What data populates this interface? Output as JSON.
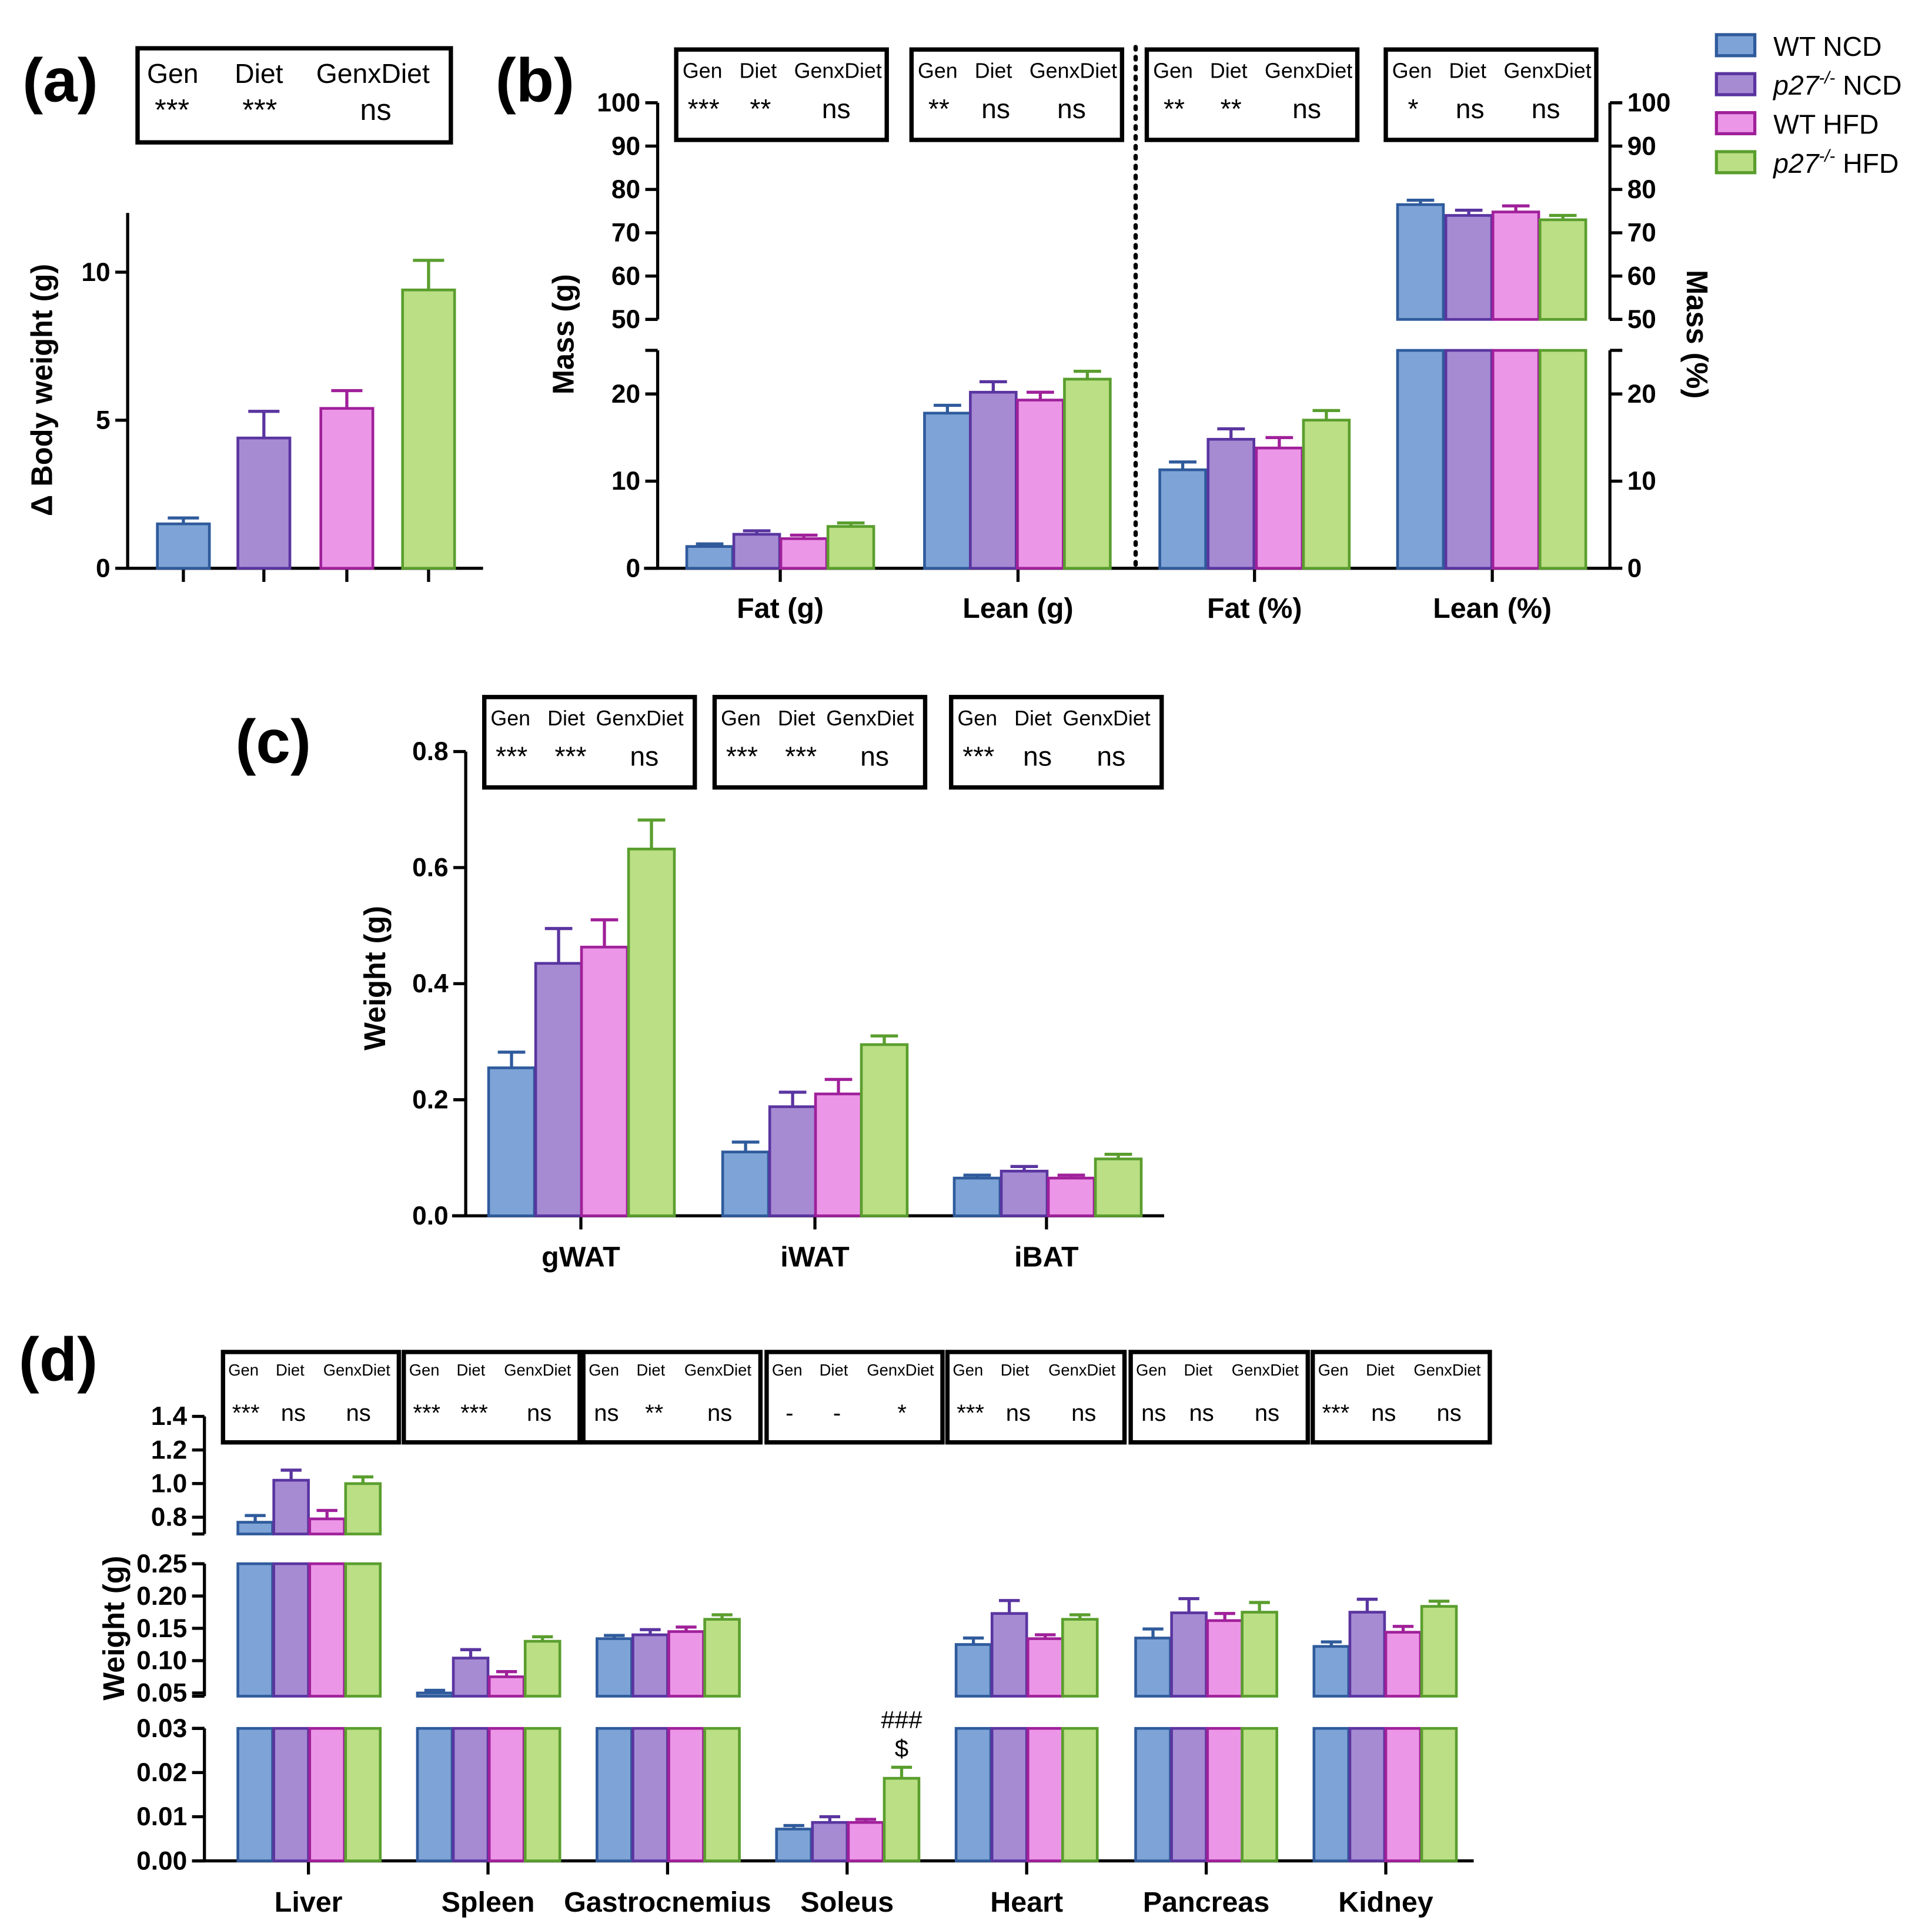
{
  "legend": [
    {
      "key": "wt_ncd",
      "prefix": "WT NCD",
      "sup": "",
      "suffix": "",
      "fill": "#7ea3d6",
      "stroke": "#2f5b9c"
    },
    {
      "key": "p27_ncd",
      "prefix": "p27",
      "sup": "-/-",
      "suffix": " NCD",
      "fill": "#a68bd3",
      "stroke": "#5a35a0"
    },
    {
      "key": "wt_hfd",
      "prefix": "WT HFD",
      "sup": "",
      "suffix": "",
      "fill": "#ec96e8",
      "stroke": "#a0209a"
    },
    {
      "key": "p27_hfd",
      "prefix": "p27",
      "sup": "-/-",
      "suffix": " HFD",
      "fill": "#bbdf84",
      "stroke": "#5a9e2e"
    }
  ],
  "stat_headers": [
    "Gen",
    "Diet",
    "GenxDiet"
  ],
  "chart_data": [
    {
      "id": "a",
      "panel_label": "(a)",
      "type": "bar",
      "ylabel": "Δ Body weight (g)",
      "y_segments": [
        {
          "range": [
            0,
            12
          ],
          "ticks": [
            "0",
            "5",
            "10"
          ]
        }
      ],
      "categories": [
        ""
      ],
      "series_values": [
        [
          1.5
        ],
        [
          4.4
        ],
        [
          5.4
        ],
        [
          9.4
        ]
      ],
      "series_errors": [
        [
          0.2
        ],
        [
          0.9
        ],
        [
          0.6
        ],
        [
          1.0
        ]
      ],
      "stats": [
        [
          "***",
          "***",
          "ns"
        ]
      ]
    },
    {
      "id": "b",
      "panel_label": "(b)",
      "type": "bar",
      "ylabel": "Mass (g)",
      "ylabel_right": "Mass (%)",
      "y_segments": [
        {
          "range": [
            0,
            25
          ],
          "ticks": [
            "0",
            "10",
            "20"
          ]
        },
        {
          "range": [
            50,
            100
          ],
          "ticks": [
            "50",
            "60",
            "70",
            "80",
            "90",
            "100"
          ]
        }
      ],
      "categories": [
        "Fat (g)",
        "Lean (g)",
        "Fat (%)",
        "Lean (%)"
      ],
      "series_values": [
        [
          2.5,
          17.8,
          11.3,
          76.5
        ],
        [
          3.9,
          20.2,
          14.8,
          74.0
        ],
        [
          3.4,
          19.3,
          13.8,
          74.8
        ],
        [
          4.8,
          21.7,
          17.0,
          73.0
        ]
      ],
      "series_errors": [
        [
          0.3,
          0.9,
          0.9,
          1.0
        ],
        [
          0.4,
          1.2,
          1.2,
          1.2
        ],
        [
          0.4,
          0.9,
          1.2,
          1.4
        ],
        [
          0.4,
          0.9,
          1.1,
          1.0
        ]
      ],
      "stats": [
        [
          "***",
          "**",
          "ns"
        ],
        [
          "**",
          "ns",
          "ns"
        ],
        [
          "**",
          "**",
          "ns"
        ],
        [
          "*",
          "ns",
          "ns"
        ]
      ]
    },
    {
      "id": "c",
      "panel_label": "(c)",
      "type": "bar",
      "ylabel": "Weight (g)",
      "y_segments": [
        {
          "range": [
            0,
            0.8
          ],
          "ticks": [
            "0.0",
            "0.2",
            "0.4",
            "0.6",
            "0.8"
          ]
        }
      ],
      "categories": [
        "gWAT",
        "iWAT",
        "iBAT"
      ],
      "series_values": [
        [
          0.255,
          0.11,
          0.065
        ],
        [
          0.435,
          0.188,
          0.077
        ],
        [
          0.463,
          0.21,
          0.065
        ],
        [
          0.632,
          0.295,
          0.098
        ]
      ],
      "series_errors": [
        [
          0.027,
          0.017,
          0.005
        ],
        [
          0.06,
          0.025,
          0.008
        ],
        [
          0.047,
          0.025,
          0.005
        ],
        [
          0.05,
          0.015,
          0.008
        ]
      ],
      "stats": [
        [
          "***",
          "***",
          "ns"
        ],
        [
          "***",
          "***",
          "ns"
        ],
        [
          "***",
          "ns",
          "ns"
        ]
      ]
    },
    {
      "id": "d",
      "panel_label": "(d)",
      "type": "bar",
      "ylabel": "Weight (g)",
      "y_segments": [
        {
          "range": [
            0,
            0.03
          ],
          "ticks": [
            "0.00",
            "0.01",
            "0.02",
            "0.03"
          ]
        },
        {
          "range": [
            0.045,
            0.25
          ],
          "ticks": [
            "0.05",
            "0.10",
            "0.15",
            "0.20",
            "0.25"
          ]
        },
        {
          "range": [
            0.7,
            1.4
          ],
          "ticks": [
            "0.8",
            "1.0",
            "1.2",
            "1.4"
          ]
        }
      ],
      "categories": [
        "Liver",
        "Spleen",
        "Gastrocnemius",
        "Soleus",
        "Heart",
        "Pancreas",
        "Kidney"
      ],
      "series_values": [
        [
          0.77,
          0.05,
          0.134,
          0.0072,
          0.125,
          0.135,
          0.122
        ],
        [
          1.02,
          0.104,
          0.14,
          0.0087,
          0.173,
          0.174,
          0.175
        ],
        [
          0.79,
          0.075,
          0.145,
          0.0087,
          0.134,
          0.162,
          0.144
        ],
        [
          1.0,
          0.13,
          0.164,
          0.0187,
          0.164,
          0.175,
          0.184
        ]
      ],
      "series_errors": [
        [
          0.04,
          0.004,
          0.005,
          0.0008,
          0.01,
          0.014,
          0.007
        ],
        [
          0.06,
          0.013,
          0.008,
          0.0013,
          0.02,
          0.022,
          0.02
        ],
        [
          0.05,
          0.008,
          0.007,
          0.0007,
          0.006,
          0.011,
          0.009
        ],
        [
          0.04,
          0.007,
          0.007,
          0.0025,
          0.007,
          0.015,
          0.008
        ]
      ],
      "stats": [
        [
          "***",
          "ns",
          "ns"
        ],
        [
          "***",
          "***",
          "ns"
        ],
        [
          "ns",
          "**",
          "ns"
        ],
        [
          "-",
          "-",
          "*"
        ],
        [
          "***",
          "ns",
          "ns"
        ],
        [
          "ns",
          "ns",
          "ns"
        ],
        [
          "***",
          "ns",
          "ns"
        ]
      ],
      "annotations": [
        {
          "category": "Soleus",
          "series": 3,
          "lines": [
            "###",
            "$"
          ]
        }
      ]
    }
  ]
}
